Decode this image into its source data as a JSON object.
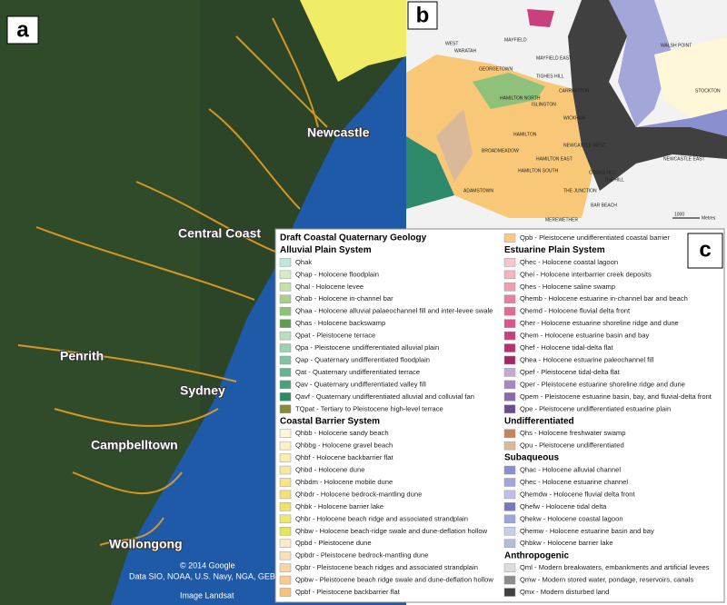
{
  "panel_a": {
    "letter": "a",
    "places": [
      "Newcastle",
      "Central Coast",
      "Penrith",
      "Sydney",
      "Campbelltown",
      "Wollongong"
    ],
    "credits": [
      "© 2014 Google",
      "Data SIO, NOAA, U.S. Navy, NGA, GEBCO",
      "Image Landsat"
    ]
  },
  "panel_b": {
    "letter": "b",
    "places": [
      "WEST",
      "WARATAH",
      "MAYFIELD",
      "MAYFIELD EAST",
      "WALSH POINT",
      "GEORGETOWN",
      "TIGHES HILL",
      "HAMILTON NORTH",
      "ISLINGTON",
      "CARRINGTON",
      "WICKHAM",
      "STOCKTON",
      "HAMILTON",
      "NEWCASTLE WEST",
      "BROADMEADOW",
      "HAMILTON EAST",
      "ADAMSTOWN",
      "HAMILTON SOUTH",
      "COOKS HILL",
      "THE HILL",
      "NEWCASTLE EAST",
      "THE JUNCTION",
      "BAR BEACH",
      "MEREWETHER"
    ],
    "scale_value": "1000",
    "scale_unit": "Metres"
  },
  "panel_c": {
    "letter": "c",
    "title": "Draft Coastal Quaternary Geology",
    "columns": [
      [
        {
          "heading": "Alluvial Plain System"
        },
        {
          "label": "Qhak",
          "color": "#bfe5de"
        },
        {
          "label": "Qhap - Holocene floodplain",
          "color": "#d6ecc8"
        },
        {
          "label": "Qhal - Holocene levee",
          "color": "#c4e0a6"
        },
        {
          "label": "Qhab - Holocene in-channel bar",
          "color": "#a8d08a"
        },
        {
          "label": "Qhaa - Holocene alluvial palaeochannel fill and inter-levee swale",
          "color": "#8fc17a"
        },
        {
          "label": "Qhas - Holocene backswamp",
          "color": "#5e9e4e"
        },
        {
          "label": "Qpat - Pleistocene terrace",
          "color": "#b8ddc0"
        },
        {
          "label": "Qpa - Pleistocene undifferentiated alluvial plain",
          "color": "#9bd0b0"
        },
        {
          "label": "Qap - Quaternary undifferentiated floodplain",
          "color": "#7fc3a0"
        },
        {
          "label": "Qat - Quaternary undifferentiated terrace",
          "color": "#64b490"
        },
        {
          "label": "Qav - Quaternary undifferentiated valley fill",
          "color": "#4aa17e"
        },
        {
          "label": "Qavf - Quaternary undifferentiated alluvial and colluvial fan",
          "color": "#2f8a6b"
        },
        {
          "label": "TQpat - Tertiary to Pleistocene high-level terrace",
          "color": "#8a8a3a"
        },
        {
          "heading": "Coastal Barrier System"
        },
        {
          "label": "Qhbb - Holocene sandy beach",
          "color": "#fdf7d8"
        },
        {
          "label": "Qhbbg - Holocene gravel beach",
          "color": "#fbf2c4"
        },
        {
          "label": "Qhbf - Holocene backbarrier flat",
          "color": "#f9edb0"
        },
        {
          "label": "Qhbd - Holocene dune",
          "color": "#f7e8a0"
        },
        {
          "label": "Qhbdm - Holocene mobile dune",
          "color": "#f5e38e"
        },
        {
          "label": "Qhbdr - Holocene bedrock-mantling dune",
          "color": "#f3df7e"
        },
        {
          "label": "Qhbk - Holocene barrier lake",
          "color": "#efe06a"
        },
        {
          "label": "Qhbr - Holocene beach ridge and associated strandplain",
          "color": "#ece96a"
        },
        {
          "label": "Qhbw - Holocene beach-ridge swale and dune-deflation hollow",
          "color": "#e6e45a"
        },
        {
          "label": "Qpbd - Pleistocene dune",
          "color": "#fde9cc"
        },
        {
          "label": "Qpbdr - Pleistocene bedrock-mantling dune",
          "color": "#fbdfb8"
        },
        {
          "label": "Qpbr - Pleistocene beach ridges and associated strandplain",
          "color": "#f9d5a4"
        },
        {
          "label": "Qpbw - Pleistocene beach ridge swale and dune-deflation hollow",
          "color": "#f7cb90"
        },
        {
          "label": "Qpbf - Pleistocene backbarrier flat",
          "color": "#f5c17c"
        }
      ],
      [
        {
          "label": "Qpb - Pleistocene undifferentiated coastal barrier",
          "color": "#f7c98a"
        },
        {
          "heading": "Estuarine Plain System"
        },
        {
          "label": "Qhec - Holocene coastal lagoon",
          "color": "#f5c6cb"
        },
        {
          "label": "Qhei - Holocene interbarrier creek deposits",
          "color": "#f1b5bf"
        },
        {
          "label": "Qhes - Holocene saline swamp",
          "color": "#ee9eb0"
        },
        {
          "label": "Qhemb - Holocene estuarine in-channel bar and beach",
          "color": "#e87fa0"
        },
        {
          "label": "Qhemd - Holocene fluvial delta front",
          "color": "#e56a94"
        },
        {
          "label": "Qher - Holocene estuarine shoreline ridge and dune",
          "color": "#d9558a"
        },
        {
          "label": "Qhem - Holocene estuarine basin and bay",
          "color": "#c9407c"
        },
        {
          "label": "Qhef - Holocene tidal-delta flat",
          "color": "#b8306e"
        },
        {
          "label": "Qhea - Holocene estuarine paleochannel fill",
          "color": "#a52462"
        },
        {
          "label": "Qpef - Pleistocene tidal-delta flat",
          "color": "#c6a8d3"
        },
        {
          "label": "Qper - Pleistocene estuarine shoreline ridge and dune",
          "color": "#a887c0"
        },
        {
          "label": "Qpem - Pleistocene estuarine basin, bay, and fluvial-delta front",
          "color": "#8b6aa8"
        },
        {
          "label": "Qpe - Pleistocene undifferentiated estuarine plain",
          "color": "#6b4c8f"
        },
        {
          "heading": "Undifferentiated"
        },
        {
          "label": "Qhs - Holocene freshwater swamp",
          "color": "#c8825a"
        },
        {
          "label": "Qpu - Pleistocene undifferentiated",
          "color": "#d9b99a"
        },
        {
          "heading": "Subaqueous"
        },
        {
          "label": "Qhac - Holocene alluvial channel",
          "color": "#8a8fd0"
        },
        {
          "label": "Qhec - Holocene estuarine channel",
          "color": "#a3a6d8"
        },
        {
          "label": "Qhemdw - Holocene fluvial delta front",
          "color": "#bfc1e3"
        },
        {
          "label": "Qhefw - Holocene tidal delta",
          "color": "#7478c2"
        },
        {
          "label": "Qhekw - Holocene coastal lagoon",
          "color": "#9aa8d8"
        },
        {
          "label": "Qhemw - Holocene estuarine basin and bay",
          "color": "#c8cde8"
        },
        {
          "label": "Qhbkw - Holocene barrier lake",
          "color": "#b4bcdc"
        },
        {
          "heading": "Anthropogenic"
        },
        {
          "label": "Qml - Modern breakwaters, embankments and artificial levees",
          "color": "#dcdcdc"
        },
        {
          "label": "Qmw - Modern stored water, pondage, reservoirs, canals",
          "color": "#8c8c8c"
        },
        {
          "label": "Qmx - Modern disturbed land",
          "color": "#404040"
        }
      ]
    ]
  }
}
